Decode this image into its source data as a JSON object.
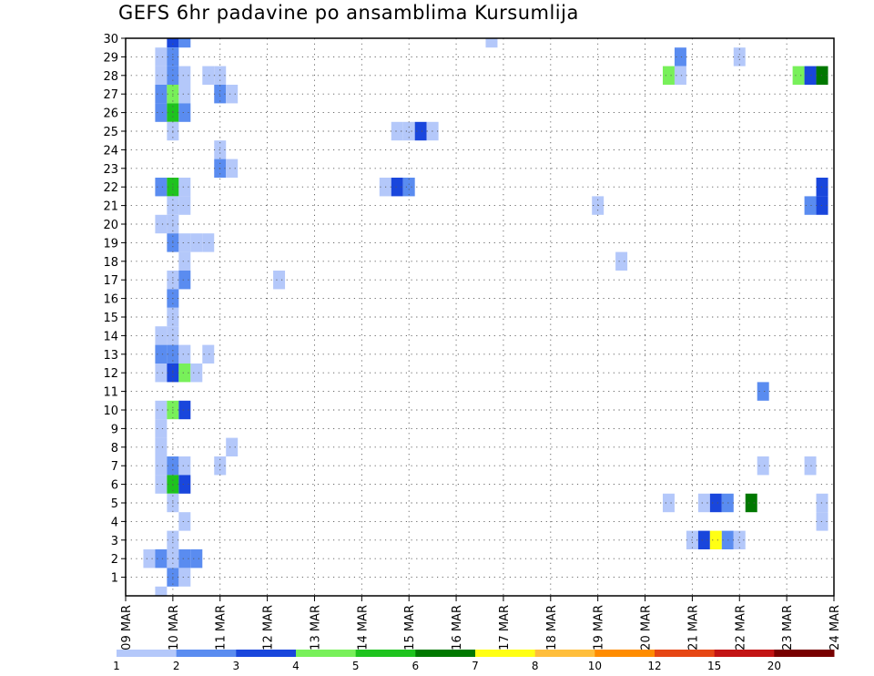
{
  "chart_data": {
    "type": "heatmap",
    "title": "GEFS 6hr padavine po ansamblima Kursumlija",
    "x_tick_labels": [
      "09 MAR",
      "10 MAR",
      "11 MAR",
      "12 MAR",
      "13 MAR",
      "14 MAR",
      "15 MAR",
      "16 MAR",
      "17 MAR",
      "18 MAR",
      "19 MAR",
      "20 MAR",
      "21 MAR",
      "22 MAR",
      "23 MAR",
      "24 MAR"
    ],
    "y_tick_labels": [
      "1",
      "2",
      "3",
      "4",
      "5",
      "6",
      "7",
      "8",
      "9",
      "10",
      "11",
      "12",
      "13",
      "14",
      "15",
      "16",
      "17",
      "18",
      "19",
      "20",
      "21",
      "22",
      "23",
      "24",
      "25",
      "26",
      "27",
      "28",
      "29",
      "30"
    ],
    "x_unit": "6-hour steps from 09 MAR 00Z",
    "x_range": [
      0,
      60
    ],
    "y_range": [
      0,
      30
    ],
    "grid": true,
    "colorbar": {
      "labels": [
        "1",
        "2",
        "3",
        "4",
        "5",
        "6",
        "7",
        "8",
        "10",
        "12",
        "15",
        "20"
      ],
      "colors": [
        "#b4c8fa",
        "#5a8cf0",
        "#1946dc",
        "#78f05a",
        "#1ec31e",
        "#007800",
        "#ffff14",
        "#ffbe3c",
        "#ff8c00",
        "#e64614",
        "#c31414",
        "#780000"
      ]
    },
    "cells": [
      {
        "x": 4,
        "y": 30,
        "v": 3
      },
      {
        "x": 5,
        "y": 30,
        "v": 2
      },
      {
        "x": 31,
        "y": 30,
        "v": 1
      },
      {
        "x": 3,
        "y": 29,
        "v": 1
      },
      {
        "x": 4,
        "y": 29,
        "v": 2
      },
      {
        "x": 47,
        "y": 29,
        "v": 2
      },
      {
        "x": 52,
        "y": 29,
        "v": 1
      },
      {
        "x": 3,
        "y": 28,
        "v": 1
      },
      {
        "x": 4,
        "y": 28,
        "v": 2
      },
      {
        "x": 5,
        "y": 28,
        "v": 1
      },
      {
        "x": 7,
        "y": 28,
        "v": 1
      },
      {
        "x": 8,
        "y": 28,
        "v": 1
      },
      {
        "x": 46,
        "y": 28,
        "v": 4
      },
      {
        "x": 47,
        "y": 28,
        "v": 1
      },
      {
        "x": 57,
        "y": 28,
        "v": 4
      },
      {
        "x": 58,
        "y": 28,
        "v": 3
      },
      {
        "x": 59,
        "y": 28,
        "v": 6
      },
      {
        "x": 3,
        "y": 27,
        "v": 2
      },
      {
        "x": 4,
        "y": 27,
        "v": 4
      },
      {
        "x": 5,
        "y": 27,
        "v": 1
      },
      {
        "x": 8,
        "y": 27,
        "v": 2
      },
      {
        "x": 9,
        "y": 27,
        "v": 1
      },
      {
        "x": 3,
        "y": 26,
        "v": 2
      },
      {
        "x": 4,
        "y": 26,
        "v": 5
      },
      {
        "x": 5,
        "y": 26,
        "v": 2
      },
      {
        "x": 4,
        "y": 25,
        "v": 1
      },
      {
        "x": 23,
        "y": 25,
        "v": 1
      },
      {
        "x": 24,
        "y": 25,
        "v": 1
      },
      {
        "x": 25,
        "y": 25,
        "v": 3
      },
      {
        "x": 26,
        "y": 25,
        "v": 1
      },
      {
        "x": 8,
        "y": 24,
        "v": 1
      },
      {
        "x": 8,
        "y": 23,
        "v": 2
      },
      {
        "x": 9,
        "y": 23,
        "v": 1
      },
      {
        "x": 3,
        "y": 22,
        "v": 2
      },
      {
        "x": 4,
        "y": 22,
        "v": 5
      },
      {
        "x": 5,
        "y": 22,
        "v": 1
      },
      {
        "x": 22,
        "y": 22,
        "v": 1
      },
      {
        "x": 23,
        "y": 22,
        "v": 3
      },
      {
        "x": 24,
        "y": 22,
        "v": 2
      },
      {
        "x": 59,
        "y": 22,
        "v": 3
      },
      {
        "x": 4,
        "y": 21,
        "v": 1
      },
      {
        "x": 5,
        "y": 21,
        "v": 1
      },
      {
        "x": 40,
        "y": 21,
        "v": 1
      },
      {
        "x": 58,
        "y": 21,
        "v": 2
      },
      {
        "x": 59,
        "y": 21,
        "v": 3
      },
      {
        "x": 3,
        "y": 20,
        "v": 1
      },
      {
        "x": 4,
        "y": 20,
        "v": 1
      },
      {
        "x": 4,
        "y": 19,
        "v": 2
      },
      {
        "x": 5,
        "y": 19,
        "v": 1
      },
      {
        "x": 6,
        "y": 19,
        "v": 1
      },
      {
        "x": 7,
        "y": 19,
        "v": 1
      },
      {
        "x": 5,
        "y": 18,
        "v": 1
      },
      {
        "x": 42,
        "y": 18,
        "v": 1
      },
      {
        "x": 4,
        "y": 17,
        "v": 1
      },
      {
        "x": 5,
        "y": 17,
        "v": 2
      },
      {
        "x": 13,
        "y": 17,
        "v": 1
      },
      {
        "x": 4,
        "y": 16,
        "v": 2
      },
      {
        "x": 4,
        "y": 15,
        "v": 1
      },
      {
        "x": 3,
        "y": 14,
        "v": 1
      },
      {
        "x": 4,
        "y": 14,
        "v": 1
      },
      {
        "x": 3,
        "y": 13,
        "v": 2
      },
      {
        "x": 4,
        "y": 13,
        "v": 2
      },
      {
        "x": 5,
        "y": 13,
        "v": 1
      },
      {
        "x": 7,
        "y": 13,
        "v": 1
      },
      {
        "x": 3,
        "y": 12,
        "v": 1
      },
      {
        "x": 4,
        "y": 12,
        "v": 3
      },
      {
        "x": 5,
        "y": 12,
        "v": 4
      },
      {
        "x": 6,
        "y": 12,
        "v": 1
      },
      {
        "x": 54,
        "y": 11,
        "v": 2
      },
      {
        "x": 3,
        "y": 10,
        "v": 1
      },
      {
        "x": 4,
        "y": 10,
        "v": 4
      },
      {
        "x": 5,
        "y": 10,
        "v": 3
      },
      {
        "x": 3,
        "y": 9,
        "v": 1
      },
      {
        "x": 3,
        "y": 8,
        "v": 1
      },
      {
        "x": 9,
        "y": 8,
        "v": 1
      },
      {
        "x": 3,
        "y": 7,
        "v": 1
      },
      {
        "x": 4,
        "y": 7,
        "v": 2
      },
      {
        "x": 5,
        "y": 7,
        "v": 1
      },
      {
        "x": 8,
        "y": 7,
        "v": 1
      },
      {
        "x": 54,
        "y": 7,
        "v": 1
      },
      {
        "x": 58,
        "y": 7,
        "v": 1
      },
      {
        "x": 3,
        "y": 6,
        "v": 1
      },
      {
        "x": 4,
        "y": 6,
        "v": 5
      },
      {
        "x": 5,
        "y": 6,
        "v": 3
      },
      {
        "x": 4,
        "y": 5,
        "v": 1
      },
      {
        "x": 46,
        "y": 5,
        "v": 1
      },
      {
        "x": 49,
        "y": 5,
        "v": 1
      },
      {
        "x": 50,
        "y": 5,
        "v": 3
      },
      {
        "x": 51,
        "y": 5,
        "v": 2
      },
      {
        "x": 53,
        "y": 5,
        "v": 6
      },
      {
        "x": 59,
        "y": 5,
        "v": 1
      },
      {
        "x": 5,
        "y": 4,
        "v": 1
      },
      {
        "x": 59,
        "y": 4,
        "v": 1
      },
      {
        "x": 4,
        "y": 3,
        "v": 1
      },
      {
        "x": 48,
        "y": 3,
        "v": 1
      },
      {
        "x": 49,
        "y": 3,
        "v": 3
      },
      {
        "x": 50,
        "y": 3,
        "v": 7
      },
      {
        "x": 51,
        "y": 3,
        "v": 2
      },
      {
        "x": 52,
        "y": 3,
        "v": 1
      },
      {
        "x": 2,
        "y": 2,
        "v": 1
      },
      {
        "x": 3,
        "y": 2,
        "v": 2
      },
      {
        "x": 4,
        "y": 2,
        "v": 1
      },
      {
        "x": 5,
        "y": 2,
        "v": 2
      },
      {
        "x": 6,
        "y": 2,
        "v": 2
      },
      {
        "x": 4,
        "y": 1,
        "v": 2
      },
      {
        "x": 5,
        "y": 1,
        "v": 1
      },
      {
        "x": 3,
        "y": 0,
        "v": 1
      }
    ]
  }
}
